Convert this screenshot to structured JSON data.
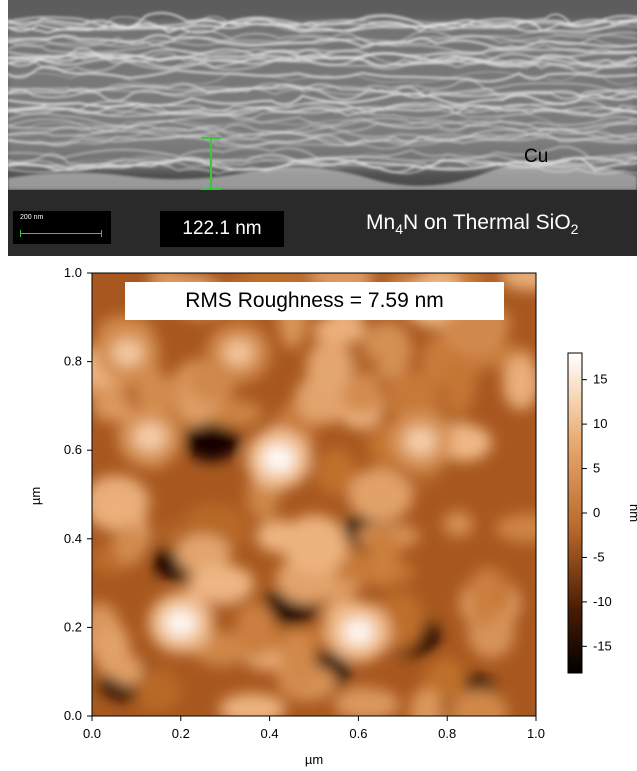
{
  "sem": {
    "material_label": "Cu",
    "substrate_prefix": "Mn",
    "substrate_sub": "4",
    "substrate_suffix": "N on Thermal SiO",
    "substrate_sub2": "2",
    "scalebar_label": "200 nm",
    "measurement": "122.1 nm",
    "colors": {
      "background": "#3a3a3a",
      "measure_line": "#3ec43e"
    }
  },
  "afm": {
    "rms_text": "RMS Roughness = 7.59 nm",
    "x_ticks": [
      "0.0",
      "0.2",
      "0.4",
      "0.6",
      "0.8",
      "1.0"
    ],
    "y_ticks": [
      "0.0",
      "0.2",
      "0.4",
      "0.6",
      "0.8",
      "1.0"
    ],
    "x_label": "µm",
    "y_label": "µm",
    "colorbar": {
      "ticks": [
        "15",
        "10",
        "5",
        "0",
        "-5",
        "-10",
        "-15"
      ],
      "unit": "nm",
      "range": [
        -18,
        18
      ],
      "colors": [
        "#000000",
        "#6a2d08",
        "#c0702c",
        "#f0b886",
        "#ffffff"
      ]
    }
  }
}
